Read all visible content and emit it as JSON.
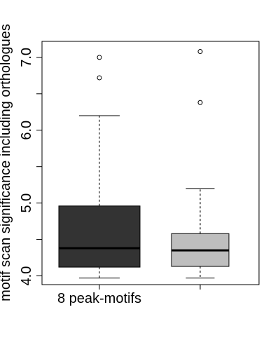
{
  "chart_data": {
    "type": "boxplot",
    "title": "",
    "xlabel": "",
    "ylabel": "motif scan significance including orthologues",
    "ylim": [
      3.9,
      7.2
    ],
    "yticks": [
      4.0,
      5.0,
      6.0,
      7.0
    ],
    "ytick_labels": [
      "4.0",
      "5.0",
      "6.0",
      "7.0"
    ],
    "yminor_ticks": [
      4.5,
      5.5,
      6.5
    ],
    "grid": false,
    "categories": [
      "8 peak-motifs",
      ""
    ],
    "boxes": [
      {
        "label": "8 peak-motifs",
        "color": "#333333",
        "whisker_low": 3.97,
        "q1": 4.12,
        "median": 4.38,
        "q3": 4.96,
        "whisker_high": 6.2,
        "outliers": [
          6.72,
          7.0
        ]
      },
      {
        "label": "",
        "color": "#bebebe",
        "whisker_low": 3.97,
        "q1": 4.13,
        "median": 4.35,
        "q3": 4.58,
        "whisker_high": 5.2,
        "outliers": [
          6.38,
          7.08
        ]
      }
    ]
  }
}
